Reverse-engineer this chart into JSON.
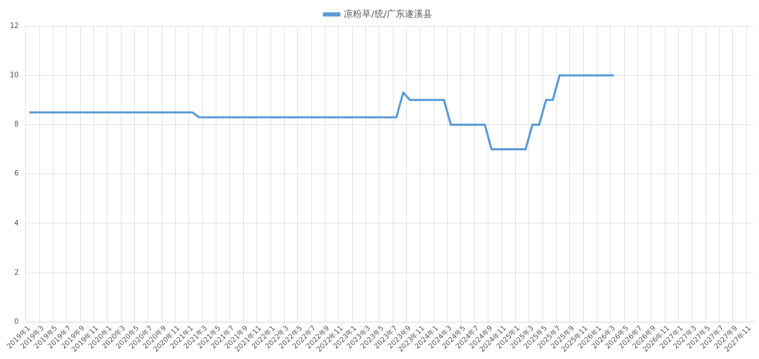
{
  "chart_data": {
    "type": "line",
    "categories": [
      "2019年1",
      null,
      "2019年3",
      null,
      "2019年5",
      null,
      "2019年7",
      null,
      "2019年9",
      null,
      "2019年11",
      null,
      "2020年1",
      null,
      "2020年3",
      null,
      "2020年5",
      null,
      "2020年7",
      null,
      "2020年9",
      null,
      "2020年11",
      null,
      "2021年1",
      null,
      "2021年3",
      null,
      "2021年5",
      null,
      "2021年7",
      null,
      "2021年9",
      null,
      "2021年11",
      null,
      "2022年1",
      null,
      "2022年3",
      null,
      "2022年5",
      null,
      "2022年7",
      null,
      "2022年9",
      null,
      "2022年11",
      null,
      "2023年1",
      null,
      "2023年3",
      null,
      "2023年5",
      null,
      "2023年7",
      null,
      "2023年9",
      null,
      "2023年11",
      null,
      "2024年1",
      null,
      "2024年3",
      null,
      "2024年5",
      null,
      "2024年7",
      null,
      "2024年9",
      null,
      "2024年11",
      null,
      "2025年1",
      null,
      "2025年3",
      null,
      "2025年5",
      null,
      "2025年7",
      null,
      "2025年9",
      null,
      "2025年11",
      null,
      "2026年1",
      null,
      "2026年3",
      null,
      "2026年5",
      null,
      "2026年7",
      null,
      "2026年9",
      null,
      "2026年11",
      null,
      "2027年1",
      null,
      "2027年3",
      null,
      "2027年5",
      null,
      "2027年7",
      null,
      "2027年9",
      null,
      "2027年11"
    ],
    "series": [
      {
        "name": "凉粉草/统/广东遂溪县",
        "color": "#5b9bd5",
        "values": [
          8.5,
          8.5,
          8.5,
          8.5,
          8.5,
          8.5,
          8.5,
          8.5,
          8.5,
          8.5,
          8.5,
          8.5,
          8.5,
          8.5,
          8.5,
          8.5,
          8.5,
          8.5,
          8.5,
          8.5,
          8.5,
          8.5,
          8.5,
          8.5,
          8.5,
          8.3,
          8.3,
          8.3,
          8.3,
          8.3,
          8.3,
          8.3,
          8.3,
          8.3,
          8.3,
          8.3,
          8.3,
          8.3,
          8.3,
          8.3,
          8.3,
          8.3,
          8.3,
          8.3,
          8.3,
          8.3,
          8.3,
          8.3,
          8.3,
          8.3,
          8.3,
          8.3,
          8.3,
          8.3,
          8.3,
          9.3,
          9,
          9,
          9,
          9,
          9,
          9,
          8,
          8,
          8,
          8,
          8,
          8,
          7,
          7,
          7,
          7,
          7,
          7,
          8,
          8,
          9,
          9,
          10,
          10,
          10,
          10,
          10,
          10,
          10,
          10,
          10,
          null,
          null,
          null,
          null,
          null,
          null,
          null,
          null,
          null,
          null,
          null,
          null,
          null,
          null,
          null,
          null,
          null,
          null,
          null,
          null
        ]
      }
    ],
    "ylim": [
      0,
      12
    ],
    "yticks": [
      0,
      2,
      4,
      6,
      8,
      10,
      12
    ],
    "grid": true,
    "legend": "top"
  }
}
